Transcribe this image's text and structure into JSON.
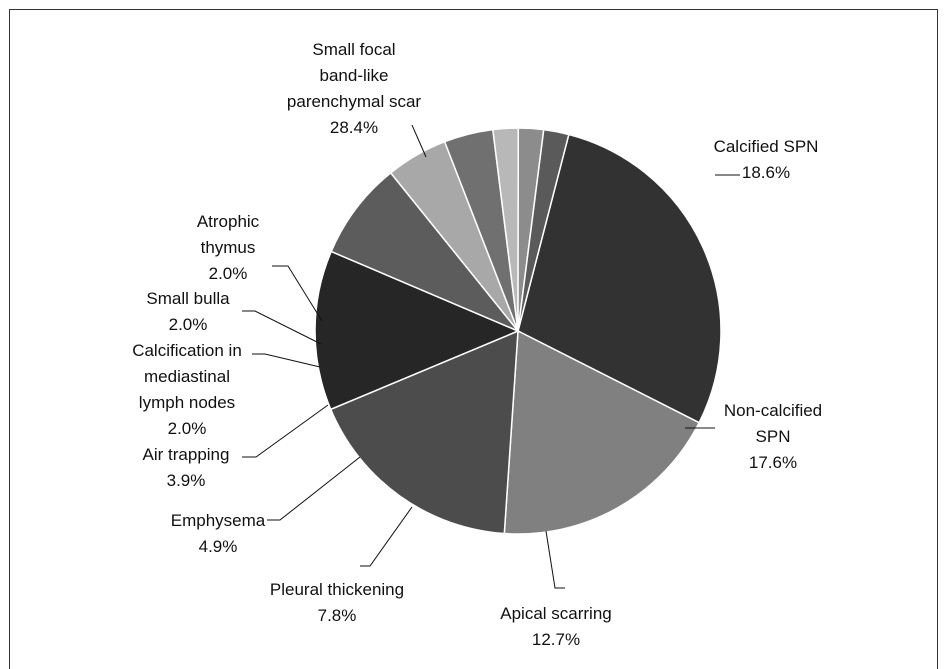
{
  "chart_data": {
    "type": "pie",
    "title": "",
    "start_angle_deg": 14.5,
    "direction": "clockwise",
    "slices": [
      {
        "label": [
          "Small focal",
          "band-like",
          "parenchymal scar"
        ],
        "percent_label": "28.4%",
        "value": 28.4,
        "color": "#323232"
      },
      {
        "label": [
          "Calcified SPN"
        ],
        "percent_label": "18.6%",
        "value": 18.6,
        "color": "#808080"
      },
      {
        "label": [
          "Non-calcified",
          "SPN"
        ],
        "percent_label": "17.6%",
        "value": 17.6,
        "color": "#4c4c4c"
      },
      {
        "label": [
          "Apical scarring"
        ],
        "percent_label": "12.7%",
        "value": 12.7,
        "color": "#262626"
      },
      {
        "label": [
          "Pleural thickening"
        ],
        "percent_label": "7.8%",
        "value": 7.8,
        "color": "#5c5c5c"
      },
      {
        "label": [
          "Emphysema"
        ],
        "percent_label": "4.9%",
        "value": 4.9,
        "color": "#a8a8a8"
      },
      {
        "label": [
          "Air trapping"
        ],
        "percent_label": "3.9%",
        "value": 3.9,
        "color": "#707070"
      },
      {
        "label": [
          "Calcification in",
          "mediastinal",
          "lymph nodes"
        ],
        "percent_label": "2.0%",
        "value": 2.0,
        "color": "#b8b8b8"
      },
      {
        "label": [
          "Small bulla"
        ],
        "percent_label": "2.0%",
        "value": 2.0,
        "color": "#8c8c8c"
      },
      {
        "label": [
          "Atrophic",
          "thymus"
        ],
        "percent_label": "2.0%",
        "value": 2.0,
        "color": "#5a5a5a"
      }
    ]
  }
}
